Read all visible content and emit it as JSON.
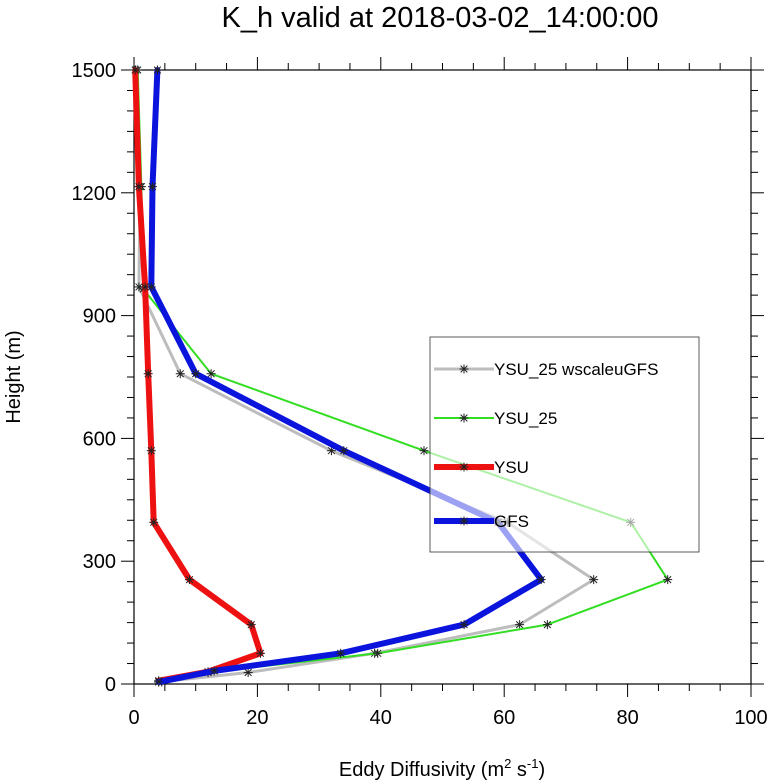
{
  "chart_data": {
    "type": "line",
    "title": "K_h valid at 2018-03-02_14:00:00",
    "xlabel": "Eddy Diffusivity",
    "xlabel_units": "(m",
    "xlabel_sup1": "2",
    "xlabel_mid": " s",
    "xlabel_sup2": "-1",
    "xlabel_end": ")",
    "ylabel": "Height (m)",
    "xlim": [
      0,
      100
    ],
    "ylim": [
      0,
      1500
    ],
    "xticks": [
      0,
      20,
      40,
      60,
      80,
      100
    ],
    "yticks": [
      0,
      300,
      600,
      900,
      1200,
      1500
    ],
    "legend_position": "middle-right",
    "series": [
      {
        "name": "YSU_25 wscaleuGFS",
        "color": "#bdbdbd",
        "width": 3,
        "markers": true,
        "points": [
          [
            4,
            5
          ],
          [
            18.5,
            28
          ],
          [
            39,
            75
          ],
          [
            62.5,
            145
          ],
          [
            74.5,
            255
          ],
          [
            60.5,
            395
          ],
          [
            32,
            570
          ],
          [
            7.5,
            758
          ],
          [
            0.8,
            970
          ],
          [
            1,
            1215
          ],
          [
            0.3,
            1500
          ]
        ]
      },
      {
        "name": "YSU_25",
        "color": "#33dd22",
        "width": 2,
        "markers": true,
        "points": [
          [
            4.5,
            5
          ],
          [
            12,
            28
          ],
          [
            39.5,
            75
          ],
          [
            67,
            145
          ],
          [
            86.5,
            255
          ],
          [
            80.5,
            395
          ],
          [
            47,
            570
          ],
          [
            12.5,
            758
          ],
          [
            1.5,
            965
          ],
          [
            1.2,
            1215
          ],
          [
            0.6,
            1500
          ]
        ]
      },
      {
        "name": "YSU",
        "color": "#ee1111",
        "width": 6,
        "markers": true,
        "points": [
          [
            4,
            8
          ],
          [
            12,
            30
          ],
          [
            20.5,
            75
          ],
          [
            19,
            145
          ],
          [
            9,
            255
          ],
          [
            3.2,
            395
          ],
          [
            2.8,
            570
          ],
          [
            2.3,
            758
          ],
          [
            1.8,
            970
          ],
          [
            0.8,
            1215
          ],
          [
            0.2,
            1500
          ]
        ]
      },
      {
        "name": "GFS",
        "color": "#0a14dd",
        "width": 6,
        "markers": true,
        "points": [
          [
            4,
            5
          ],
          [
            13,
            32
          ],
          [
            33.5,
            75
          ],
          [
            53.5,
            145
          ],
          [
            66,
            255
          ],
          [
            59,
            395
          ],
          [
            34,
            570
          ],
          [
            10,
            758
          ],
          [
            2.8,
            970
          ],
          [
            3,
            1215
          ],
          [
            3.8,
            1500
          ]
        ]
      }
    ]
  }
}
